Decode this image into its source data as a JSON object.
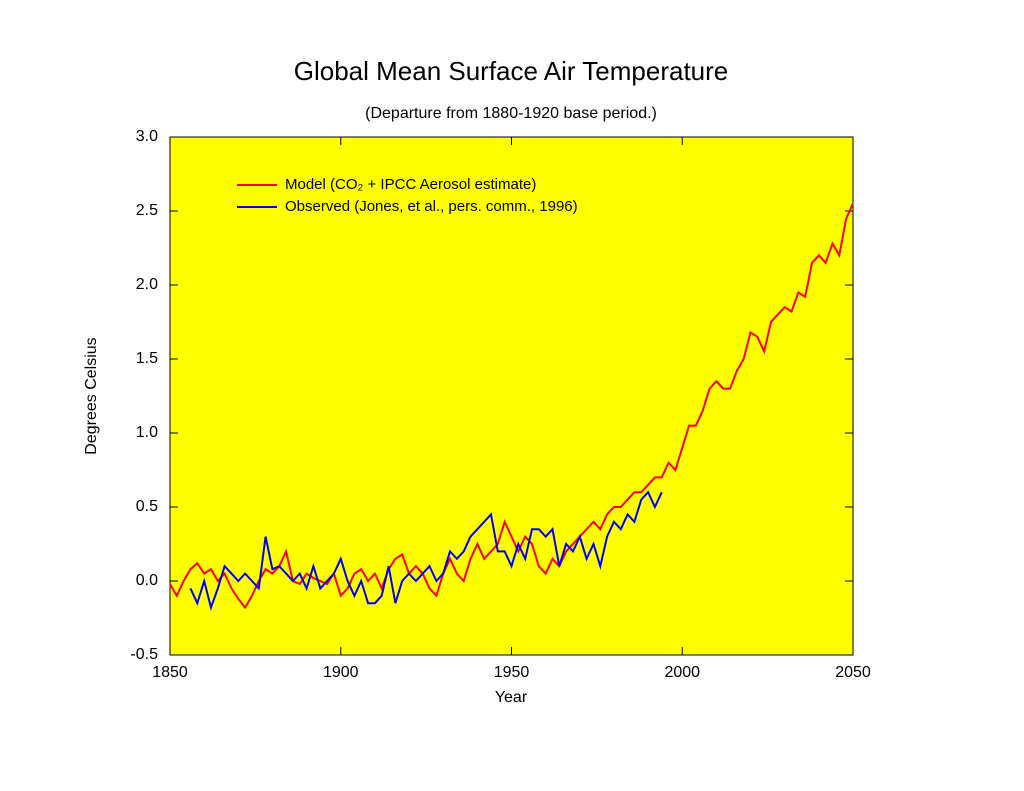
{
  "chart_data": {
    "type": "line",
    "title": "Global Mean Surface Air Temperature",
    "subtitle": "(Departure from 1880-1920 base period.)",
    "x_label": "Year",
    "y_label": "Degrees Celsius",
    "xlim": [
      1850,
      2050
    ],
    "xticks": [
      1850,
      1900,
      1950,
      2000,
      2050
    ],
    "ylim": [
      -0.5,
      3.0
    ],
    "yticks": [
      {
        "value": -0.5,
        "label": "-0.5"
      },
      {
        "value": 0,
        "label": "0.0"
      },
      {
        "value": 0.5,
        "label": "0.5"
      },
      {
        "value": 1.0,
        "label": "1.0"
      },
      {
        "value": 1.5,
        "label": "1.5"
      },
      {
        "value": 2.0,
        "label": "2.0"
      },
      {
        "value": 2.5,
        "label": "2.5"
      },
      {
        "value": 3.0,
        "label": "3.0"
      }
    ],
    "legend": "upper left",
    "background": "#ffff00",
    "series": [
      {
        "name": "Model (CO₂ + IPCC Aerosol estimate)",
        "color": "#ff0000",
        "x": [
          1850,
          1852,
          1854,
          1856,
          1858,
          1860,
          1862,
          1864,
          1866,
          1868,
          1870,
          1872,
          1874,
          1876,
          1878,
          1880,
          1882,
          1884,
          1886,
          1888,
          1890,
          1892,
          1894,
          1896,
          1898,
          1900,
          1902,
          1904,
          1906,
          1908,
          1910,
          1912,
          1914,
          1916,
          1918,
          1920,
          1922,
          1924,
          1926,
          1928,
          1930,
          1932,
          1934,
          1936,
          1938,
          1940,
          1942,
          1944,
          1946,
          1948,
          1950,
          1952,
          1954,
          1956,
          1958,
          1960,
          1962,
          1964,
          1966,
          1968,
          1970,
          1972,
          1974,
          1976,
          1978,
          1980,
          1982,
          1984,
          1986,
          1988,
          1990,
          1992,
          1994,
          1996,
          1998,
          2000,
          2002,
          2004,
          2006,
          2008,
          2010,
          2012,
          2014,
          2016,
          2018,
          2020,
          2022,
          2024,
          2026,
          2028,
          2030,
          2032,
          2034,
          2036,
          2038,
          2040,
          2042,
          2044,
          2046,
          2048,
          2050
        ],
        "values": [
          -0.02,
          -0.1,
          0.0,
          0.08,
          0.12,
          0.05,
          0.08,
          0.0,
          0.05,
          -0.05,
          -0.12,
          -0.18,
          -0.1,
          0.0,
          0.08,
          0.05,
          0.1,
          0.2,
          0.0,
          -0.02,
          0.05,
          0.02,
          0.0,
          -0.02,
          0.05,
          -0.1,
          -0.05,
          0.05,
          0.08,
          0.0,
          0.05,
          -0.05,
          0.08,
          0.15,
          0.18,
          0.05,
          0.1,
          0.05,
          -0.05,
          -0.1,
          0.05,
          0.15,
          0.05,
          0.0,
          0.15,
          0.25,
          0.15,
          0.2,
          0.25,
          0.4,
          0.3,
          0.2,
          0.3,
          0.25,
          0.1,
          0.05,
          0.15,
          0.1,
          0.2,
          0.25,
          0.3,
          0.35,
          0.4,
          0.35,
          0.45,
          0.5,
          0.5,
          0.55,
          0.6,
          0.6,
          0.65,
          0.7,
          0.7,
          0.8,
          0.75,
          0.9,
          1.05,
          1.05,
          1.15,
          1.3,
          1.35,
          1.3,
          1.3,
          1.42,
          1.5,
          1.68,
          1.65,
          1.55,
          1.75,
          1.8,
          1.85,
          1.82,
          1.95,
          1.92,
          2.15,
          2.2,
          2.15,
          2.28,
          2.2,
          2.45,
          2.55
        ]
      },
      {
        "name": "Observed (Jones, et al., pers. comm., 1996)",
        "color": "#0000ff",
        "x": [
          1856,
          1858,
          1860,
          1862,
          1864,
          1866,
          1868,
          1870,
          1872,
          1874,
          1876,
          1878,
          1880,
          1882,
          1884,
          1886,
          1888,
          1890,
          1892,
          1894,
          1896,
          1898,
          1900,
          1902,
          1904,
          1906,
          1908,
          1910,
          1912,
          1914,
          1916,
          1918,
          1920,
          1922,
          1924,
          1926,
          1928,
          1930,
          1932,
          1934,
          1936,
          1938,
          1940,
          1942,
          1944,
          1946,
          1948,
          1950,
          1952,
          1954,
          1956,
          1958,
          1960,
          1962,
          1964,
          1966,
          1968,
          1970,
          1972,
          1974,
          1976,
          1978,
          1980,
          1982,
          1984,
          1986,
          1988,
          1990,
          1992,
          1994
        ],
        "values": [
          -0.05,
          -0.15,
          0.0,
          -0.18,
          -0.05,
          0.1,
          0.05,
          0.0,
          0.05,
          0.0,
          -0.05,
          0.3,
          0.08,
          0.1,
          0.05,
          0.0,
          0.05,
          -0.05,
          0.1,
          -0.05,
          0.0,
          0.05,
          0.15,
          0.0,
          -0.1,
          0.0,
          -0.15,
          -0.15,
          -0.1,
          0.1,
          -0.15,
          0.0,
          0.05,
          0.0,
          0.05,
          0.1,
          0.0,
          0.05,
          0.2,
          0.15,
          0.2,
          0.3,
          0.35,
          0.4,
          0.45,
          0.2,
          0.2,
          0.1,
          0.25,
          0.15,
          0.35,
          0.35,
          0.3,
          0.35,
          0.1,
          0.25,
          0.2,
          0.3,
          0.15,
          0.25,
          0.1,
          0.3,
          0.4,
          0.35,
          0.45,
          0.4,
          0.55,
          0.6,
          0.5,
          0.6
        ]
      }
    ]
  }
}
